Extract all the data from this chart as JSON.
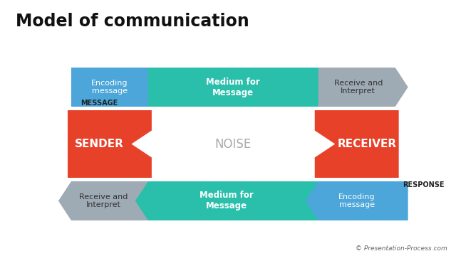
{
  "title": "Model of communication",
  "title_fontsize": 17,
  "title_fontweight": "bold",
  "bg_color": "#ffffff",
  "noise_bg_color": "#f0e8c8",
  "noise_dot_color": "#d9cc9a",
  "noise_text": "NOISE",
  "noise_text_color": "#aaaaaa",
  "sender_color": "#e8412a",
  "receiver_color": "#e8412a",
  "blue_color": "#4da6d9",
  "teal_color": "#2abfaa",
  "gray_color": "#9eaab4",
  "sender_label": "SENDER",
  "receiver_label": "RECEIVER",
  "message_label": "MESSAGE",
  "response_label": "RESPONSE",
  "top_labels": [
    "Encoding\nmessage",
    "Medium for\nMessage",
    "Receive and\nInterpret"
  ],
  "bottom_labels": [
    "Receive and\nInterpret",
    "Medium for\nMessage",
    "Encoding\nmessage"
  ],
  "copyright": "© Presentation-Process.com"
}
